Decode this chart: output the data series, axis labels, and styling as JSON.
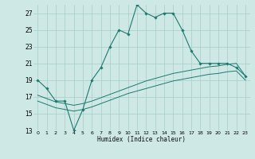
{
  "title": "",
  "xlabel": "Humidex (Indice chaleur)",
  "ylim": [
    13,
    28
  ],
  "xlim": [
    -0.5,
    23.5
  ],
  "yticks": [
    13,
    15,
    17,
    19,
    21,
    23,
    25,
    27
  ],
  "x_ticks": [
    0,
    1,
    2,
    3,
    4,
    5,
    6,
    7,
    8,
    9,
    10,
    11,
    12,
    13,
    14,
    15,
    16,
    17,
    18,
    19,
    20,
    21,
    22,
    23
  ],
  "bg_color": "#cde8e5",
  "grid_color": "#a8ceca",
  "line_color": "#1e7a6e",
  "line1_x": [
    0,
    1,
    2,
    3,
    4,
    5,
    6,
    7,
    8,
    9,
    10,
    11,
    12,
    13,
    14,
    15,
    16,
    17,
    18,
    19,
    20,
    21,
    22,
    23
  ],
  "line1_y": [
    19.0,
    18.0,
    16.5,
    16.5,
    13.0,
    15.5,
    19.0,
    20.5,
    23.0,
    25.0,
    24.5,
    28.0,
    27.0,
    26.5,
    27.0,
    27.0,
    25.0,
    22.5,
    21.0,
    21.0,
    21.0,
    21.0,
    20.5,
    19.5
  ],
  "line2_x": [
    0,
    1,
    2,
    3,
    4,
    5,
    6,
    7,
    8,
    9,
    10,
    11,
    12,
    13,
    14,
    15,
    16,
    17,
    18,
    19,
    20,
    21,
    22,
    23
  ],
  "line2_y": [
    17.2,
    16.8,
    16.4,
    16.2,
    16.0,
    16.2,
    16.5,
    16.9,
    17.3,
    17.7,
    18.1,
    18.5,
    18.9,
    19.2,
    19.5,
    19.8,
    20.0,
    20.2,
    20.4,
    20.6,
    20.7,
    20.9,
    21.0,
    19.5
  ],
  "line3_x": [
    0,
    1,
    2,
    3,
    4,
    5,
    6,
    7,
    8,
    9,
    10,
    11,
    12,
    13,
    14,
    15,
    16,
    17,
    18,
    19,
    20,
    21,
    22,
    23
  ],
  "line3_y": [
    16.5,
    16.1,
    15.7,
    15.5,
    15.3,
    15.5,
    15.8,
    16.2,
    16.6,
    17.0,
    17.4,
    17.7,
    18.0,
    18.3,
    18.6,
    18.9,
    19.1,
    19.3,
    19.5,
    19.7,
    19.8,
    20.0,
    20.1,
    19.0
  ]
}
